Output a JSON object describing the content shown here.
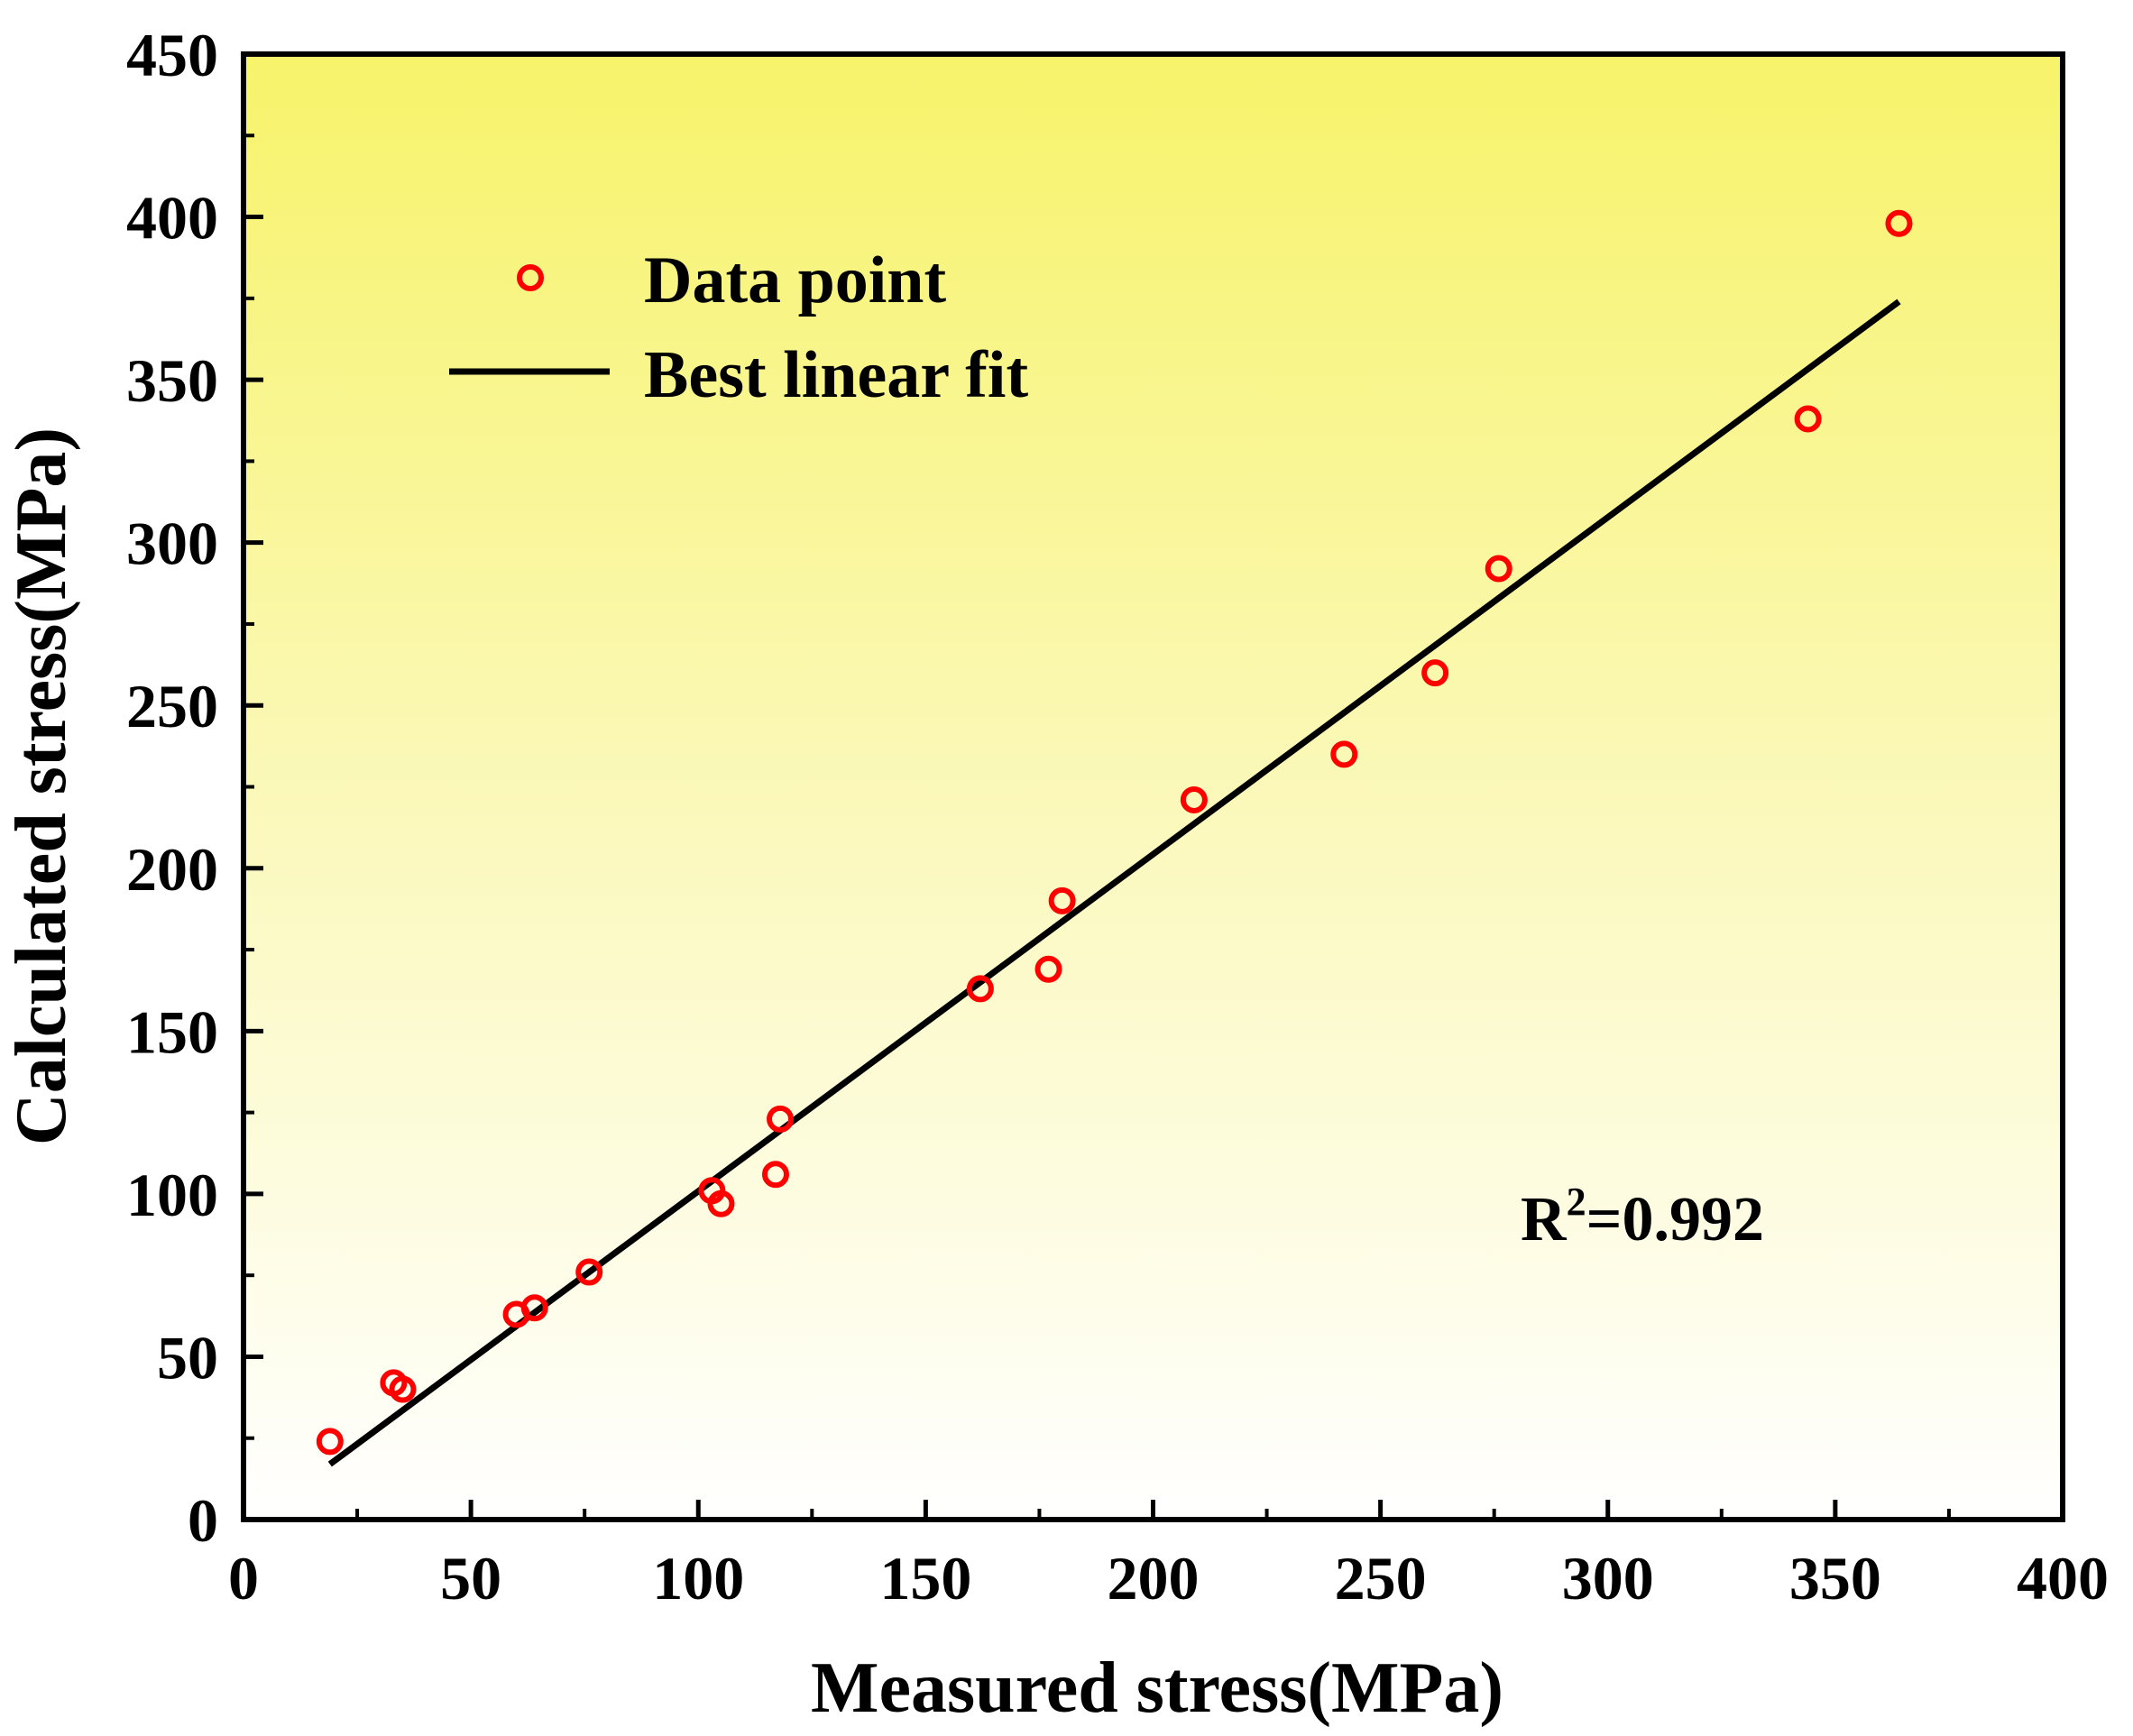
{
  "chart_data": {
    "type": "scatter",
    "title": "",
    "xlabel": "Measured stress(MPa)",
    "ylabel": "Calculated stress(MPa)",
    "xlim": [
      0,
      400
    ],
    "ylim": [
      0,
      450
    ],
    "xticks": [
      0,
      50,
      100,
      150,
      200,
      250,
      300,
      350,
      400
    ],
    "yticks": [
      0,
      50,
      100,
      150,
      200,
      250,
      300,
      350,
      400,
      450
    ],
    "grid": false,
    "legend_position": "top-left",
    "background": {
      "top_color": "#f7f36a",
      "bottom_color": "#ffffff"
    },
    "series": [
      {
        "name": "Data point",
        "kind": "scatter",
        "marker": "hollow-circle",
        "color": "#ff0000",
        "points": [
          [
            19,
            24
          ],
          [
            33,
            42
          ],
          [
            35,
            40
          ],
          [
            60,
            63
          ],
          [
            64,
            65
          ],
          [
            76,
            76
          ],
          [
            103,
            101
          ],
          [
            105,
            97
          ],
          [
            117,
            106
          ],
          [
            118,
            123
          ],
          [
            162,
            163
          ],
          [
            177,
            169
          ],
          [
            180,
            190
          ],
          [
            209,
            221
          ],
          [
            242,
            235
          ],
          [
            262,
            260
          ],
          [
            276,
            292
          ],
          [
            344,
            338
          ],
          [
            364,
            398
          ]
        ]
      },
      {
        "name": "Best linear fit",
        "kind": "line",
        "color": "#000000",
        "points": [
          [
            19,
            17
          ],
          [
            364,
            374
          ]
        ]
      }
    ],
    "annotation": {
      "base": "R",
      "sup": "2",
      "rest": "=0.992"
    }
  }
}
